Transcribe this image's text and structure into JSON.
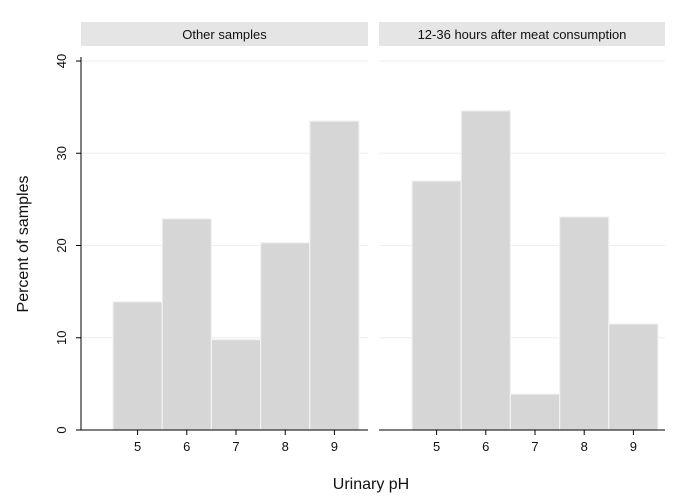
{
  "chart_data": {
    "type": "bar",
    "subtype": "histogram-facets",
    "xlabel": "Urinary pH",
    "ylabel": "Percent of samples",
    "ylim": [
      0,
      40
    ],
    "yticks": [
      0,
      10,
      20,
      30,
      40
    ],
    "xticks": [
      5,
      6,
      7,
      8,
      9
    ],
    "grid": "horizontal",
    "colors": {
      "bar_fill": "#d6d6d6",
      "bar_edge": "#f2f2f2",
      "strip": "#e5e5e5",
      "panel_bg": "#ffffff"
    },
    "panels": [
      {
        "title": "Other samples",
        "categories": [
          5,
          6,
          7,
          8,
          9
        ],
        "values": [
          13.9,
          22.9,
          9.8,
          20.3,
          33.5
        ]
      },
      {
        "title": "12-36 hours after meat consumption",
        "categories": [
          5,
          6,
          7,
          8,
          9
        ],
        "values": [
          27.0,
          34.6,
          3.9,
          23.1,
          11.5
        ]
      }
    ]
  }
}
